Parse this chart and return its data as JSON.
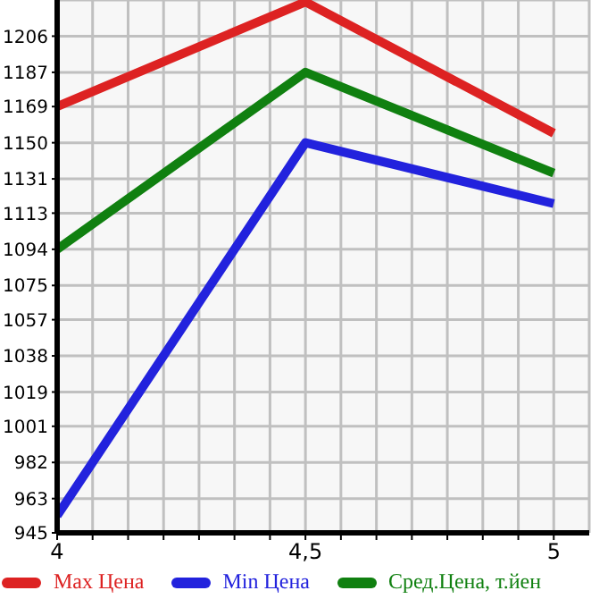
{
  "chart_data": {
    "type": "line",
    "x": [
      4,
      4.5,
      5
    ],
    "series": [
      {
        "name": "Max Цена",
        "color": "#dd2222",
        "values": [
          1169,
          1224,
          1155
        ]
      },
      {
        "name": "Min Цена",
        "color": "#2222dd",
        "values": [
          954,
          1150,
          1118
        ]
      },
      {
        "name": "Сред.Цена, т.йен",
        "color": "#108010",
        "values": [
          1094,
          1187,
          1134
        ]
      }
    ],
    "xlim": [
      4,
      5.0714
    ],
    "xticks": [
      4,
      {
        "value": 4.0714,
        "label": null
      },
      {
        "value": 4.1429,
        "label": null
      },
      {
        "value": 4.2143,
        "label": null
      },
      {
        "value": 4.2857,
        "label": null
      },
      {
        "value": 4.3571,
        "label": null
      },
      {
        "value": 4.4286,
        "label": null
      },
      {
        "value": 4.5,
        "label": "4,5"
      },
      {
        "value": 4.5714,
        "label": null
      },
      {
        "value": 4.6429,
        "label": null
      },
      {
        "value": 4.7143,
        "label": null
      },
      {
        "value": 4.7857,
        "label": null
      },
      {
        "value": 4.8571,
        "label": null
      },
      {
        "value": 4.9286,
        "label": null
      },
      5
    ],
    "ylim": [
      945,
      1225
    ],
    "yticks": [
      945,
      963,
      982,
      1001,
      1019,
      1038,
      1057,
      1075,
      1094,
      1113,
      1131,
      1150,
      1169,
      1187,
      1206
    ],
    "grid": true,
    "legend": "bottom",
    "marker": "none",
    "line_style": "solid"
  }
}
